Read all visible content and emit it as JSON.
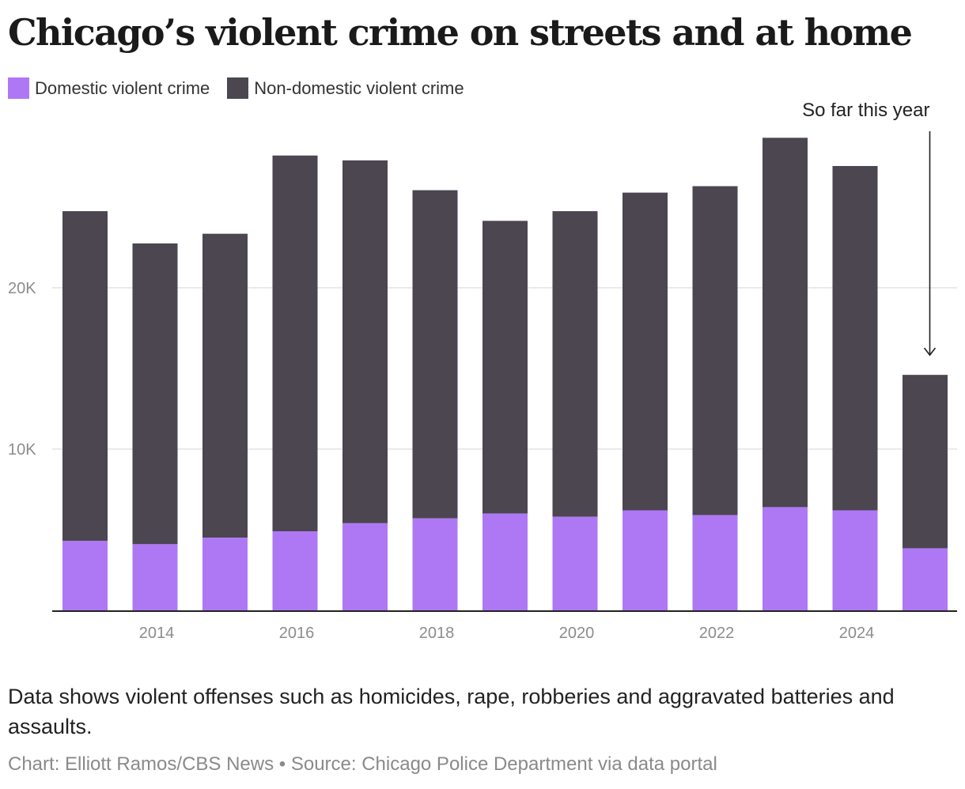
{
  "title": "Chicago’s violent crime on streets and at home",
  "note": "Data shows violent offenses such as homicides, rape, robberies and aggravated batteries and assaults.",
  "credit": "Chart: Elliott Ramos/CBS News • Source: Chicago Police Department via data portal",
  "colors": {
    "domestic": "#ae78f5",
    "non_domestic": "#4b4650",
    "grid": "#e3e3e3",
    "axis": "#222222",
    "tick_label": "#8c8c8c"
  },
  "chart_data": {
    "type": "bar",
    "stacked": true,
    "categories": [
      "2013",
      "2014",
      "2015",
      "2016",
      "2017",
      "2018",
      "2019",
      "2020",
      "2021",
      "2022",
      "2023",
      "2024",
      "2025"
    ],
    "x_tick_labels": [
      "2014",
      "2016",
      "2018",
      "2020",
      "2022",
      "2024"
    ],
    "y_tick_labels": [
      "10K",
      "20K"
    ],
    "y_ticks": [
      10000,
      20000
    ],
    "ylim": [
      0,
      30000
    ],
    "grid": true,
    "legend_position": "top-left",
    "series": [
      {
        "name": "Domestic violent crime",
        "values": [
          4300,
          4100,
          4500,
          4900,
          5400,
          5700,
          6000,
          5800,
          6200,
          5900,
          6400,
          6200,
          3850
        ]
      },
      {
        "name": "Non-domestic violent crime",
        "values": [
          20450,
          18650,
          18850,
          23300,
          22500,
          20350,
          18150,
          18950,
          19700,
          20400,
          22900,
          21350,
          10750
        ]
      }
    ],
    "annotations": [
      {
        "text": "So far this year",
        "category": "2025"
      }
    ]
  }
}
